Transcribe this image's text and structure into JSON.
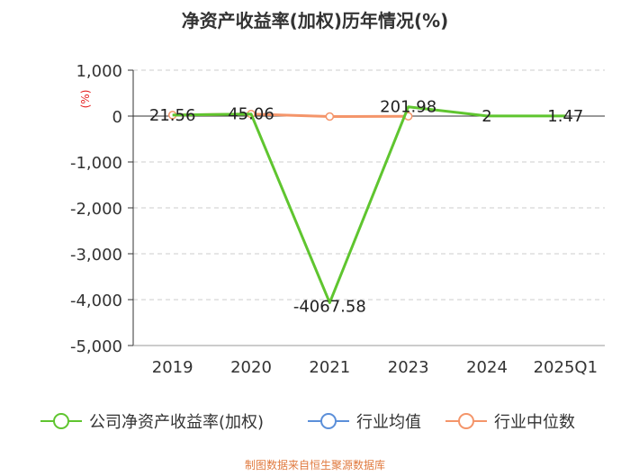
{
  "chart_data": {
    "type": "line",
    "title": "净资产收益率(加权)历年情况(%)",
    "ylabel": "(%)",
    "xlabel": "",
    "categories": [
      "2019",
      "2020",
      "2021",
      "2023",
      "2024",
      "2025Q1"
    ],
    "ylim": [
      -5000,
      1000
    ],
    "yticks": [
      1000,
      0,
      -1000,
      -2000,
      -3000,
      -4000,
      -5000
    ],
    "ytick_labels": [
      "1,000",
      "0",
      "-1,000",
      "-2,000",
      "-3,000",
      "-4,000",
      "-5,000"
    ],
    "grid": true,
    "legend_position": "bottom",
    "series": [
      {
        "name": "公司净资产收益率(加权)",
        "color": "#5fc52f",
        "values": [
          21.56,
          45.06,
          -4067.58,
          201.98,
          2,
          1.47
        ],
        "labels": [
          "21.56",
          "45.06",
          "-4067.58",
          "201.98",
          "2",
          "1.47"
        ]
      },
      {
        "name": "行业均值",
        "color": "#5b8fd9",
        "values": [
          null,
          null,
          null,
          null,
          null,
          null
        ]
      },
      {
        "name": "行业中位数",
        "color": "#f4956a",
        "values": [
          21.56,
          45.06,
          -10,
          -5,
          null,
          null
        ]
      }
    ],
    "source": "制图数据来自恒生聚源数据库",
    "source_color": "#e07a3f"
  }
}
